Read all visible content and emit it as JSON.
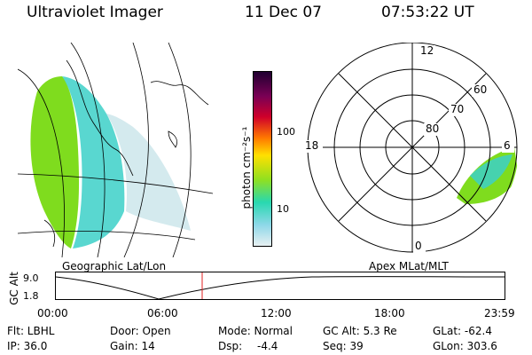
{
  "header": {
    "instrument": "Ultraviolet Imager",
    "date": "11 Dec 07",
    "time": "07:53:22 UT"
  },
  "left_map": {
    "label": "Geographic Lat/Lon"
  },
  "colorbar": {
    "label": "photon cm⁻²s⁻¹",
    "ticks": [
      "100",
      "10"
    ]
  },
  "polar_plot": {
    "label": "Apex MLat/MLT",
    "lat_labels": [
      "80",
      "70",
      "60"
    ],
    "mlt_labels": [
      "12",
      "18",
      "6",
      "0"
    ]
  },
  "altitude_plot": {
    "ylabel": "GC Alt",
    "yticks": [
      "9.0",
      "1.8"
    ],
    "xticks": [
      "00:00",
      "06:00",
      "12:00",
      "18:00",
      "23:59"
    ],
    "current_time_marker": "07:53"
  },
  "info": {
    "flt": "Flt: LBHL",
    "ip": "IP: 36.0",
    "door": "Door: Open",
    "gain": "Gain: 14",
    "mode": "Mode: Normal",
    "dsp_label": "Dsp:",
    "dsp_value": "-4.4",
    "gcalt": "GC Alt: 5.3 Re",
    "seq": "Seq: 39",
    "glat": "GLat: -62.4",
    "glon": "GLon: 303.6"
  },
  "colors": {
    "aurora_green": "#7fdc1e",
    "aurora_cyan": "#3cd0c8",
    "aurora_pale": "#cfe8ec",
    "marker_red": "#e02020"
  }
}
